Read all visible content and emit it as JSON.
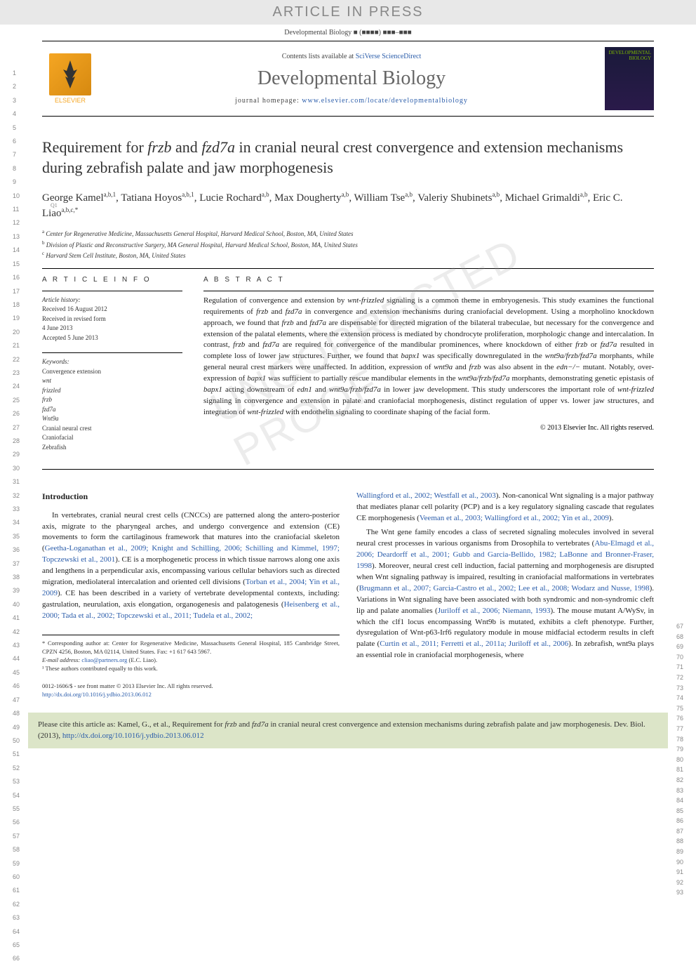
{
  "banner": "ARTICLE IN PRESS",
  "journalRef": "Developmental Biology ■ (■■■■) ■■■–■■■",
  "header": {
    "contentsPrefix": "Contents lists available at ",
    "contentsLink": "SciVerse ScienceDirect",
    "journalName": "Developmental Biology",
    "homepagePrefix": "journal homepage: ",
    "homepageUrl": "www.elsevier.com/locate/developmentalbiology",
    "elsevierLabel": "ELSEVIER",
    "coverLabel": "DEVELOPMENTAL BIOLOGY"
  },
  "title": {
    "prefix": "Requirement for ",
    "gene1": "frzb",
    "mid1": " and ",
    "gene2": "fzd7a",
    "suffix": " in cranial neural crest convergence and extension mechanisms during zebrafish palate and jaw morphogenesis"
  },
  "authors": [
    {
      "name": "George Kamel",
      "sup": "a,b,1"
    },
    {
      "name": "Tatiana Hoyos",
      "sup": "a,b,1"
    },
    {
      "name": "Lucie Rochard",
      "sup": "a,b"
    },
    {
      "name": "Max Dougherty",
      "sup": "a,b"
    },
    {
      "name": "William Tse",
      "sup": "a,b"
    },
    {
      "name": "Valeriy Shubinets",
      "sup": "a,b"
    },
    {
      "name": "Michael Grimaldi",
      "sup": "a,b"
    },
    {
      "name": "Eric C. Liao",
      "sup": "a,b,c,*"
    }
  ],
  "qMarker": "Q1",
  "affiliations": [
    {
      "sup": "a",
      "text": "Center for Regenerative Medicine, Massachusetts General Hospital, Harvard Medical School, Boston, MA, United States"
    },
    {
      "sup": "b",
      "text": "Division of Plastic and Reconstructive Surgery, MA General Hospital, Harvard Medical School, Boston, MA, United States"
    },
    {
      "sup": "c",
      "text": "Harvard Stem Cell Institute, Boston, MA, United States"
    }
  ],
  "articleInfo": {
    "head": "A R T I C L E   I N F O",
    "historyLabel": "Article history:",
    "received": "Received 16 August 2012",
    "revised": "Received in revised form",
    "revisedDate": "4 June 2013",
    "accepted": "Accepted 5 June 2013",
    "keywordsLabel": "Keywords:",
    "keywords": [
      "Convergence extension",
      "wnt",
      "frizzled",
      "frzb",
      "fzd7a",
      "Wnt9a",
      "Cranial neural crest",
      "Craniofacial",
      "Zebrafish"
    ]
  },
  "abstract": {
    "head": "A B S T R A C T",
    "text": "Regulation of convergence and extension by wnt-frizzled signaling is a common theme in embryogenesis. This study examines the functional requirements of frzb and fzd7a in convergence and extension mechanisms during craniofacial development. Using a morpholino knockdown approach, we found that frzb and fzd7a are dispensable for directed migration of the bilateral trabeculae, but necessary for the convergence and extension of the palatal elements, where the extension process is mediated by chondrocyte proliferation, morphologic change and intercalation. In contrast, frzb and fzd7a are required for convergence of the mandibular prominences, where knockdown of either frzb or fzd7a resulted in complete loss of lower jaw structures. Further, we found that bapx1 was specifically downregulated in the wnt9a/frzb/fzd7a morphants, while general neural crest markers were unaffected. In addition, expression of wnt9a and frzb was also absent in the edn−/− mutant. Notably, over-expression of bapx1 was sufficient to partially rescue mandibular elements in the wnt9a/frzb/fzd7a morphants, demonstrating genetic epistasis of bapx1 acting downstream of edn1 and wnt9a/frzb/fzd7a in lower jaw development. This study underscores the important role of wnt-frizzled signaling in convergence and extension in palate and craniofacial morphogenesis, distinct regulation of upper vs. lower jaw structures, and integration of wnt-frizzled with endothelin signaling to coordinate shaping of the facial form.",
    "copyright": "© 2013 Elsevier Inc. All rights reserved."
  },
  "introduction": {
    "head": "Introduction",
    "p1a": "In vertebrates, cranial neural crest cells (CNCCs) are patterned along the antero-posterior axis, migrate to the pharyngeal arches, and undergo convergence and extension (CE) movements to form the cartilaginous framework that matures into the craniofacial skeleton (",
    "p1links": "Geetha-Loganathan et al., 2009; Knight and Schilling, 2006; Schilling and Kimmel, 1997; Topczewski et al., 2001",
    "p1b": "). CE is a morphogenetic process in which tissue narrows along one axis and lengthens in a perpendicular axis, encompassing various cellular behaviors such as directed migration, mediolateral intercalation and oriented cell divisions (",
    "p1links2": "Torban et al., 2004; Yin et al., 2009",
    "p1c": "). CE has been described in a variety of vertebrate developmental contexts, including: gastrulation, neurulation, axis elongation, organogenesis and palatogenesis (",
    "p1links3": "Heisenberg et al., 2000; Tada et al., 2002; Topczewski et al., 2011; Tudela et al., 2002;",
    "col2a": "Wallingford et al., 2002; Westfall et al., 2003",
    "col2b": "). Non-canonical Wnt signaling is a major pathway that mediates planar cell polarity (PCP) and is a key regulatory signaling cascade that regulates CE morphogenesis (",
    "col2links": "Veeman et al., 2003; Wallingford et al., 2002; Yin et al., 2009",
    "col2c": ").",
    "p2a": "The Wnt gene family encodes a class of secreted signaling molecules involved in several neural crest processes in various organisms from Drosophila to vertebrates (",
    "p2links": "Abu-Elmagd et al., 2006; Deardorff et al., 2001; Gubb and Garcia-Bellido, 1982; LaBonne and Bronner-Fraser, 1998",
    "p2b": "). Moreover, neural crest cell induction, facial patterning and morphogenesis are disrupted when Wnt signaling pathway is impaired, resulting in craniofacial malformations in vertebrates (",
    "p2links2": "Brugmann et al., 2007; Garcia-Castro et al., 2002; Lee et al., 2008; Wodarz and Nusse, 1998",
    "p2c": "). Variations in Wnt signaling have been associated with both syndromic and non-syndromic cleft lip and palate anomalies (",
    "p2links3": "Juriloff et al., 2006; Niemann, 1993",
    "p2d": "). The mouse mutant A/WySv, in which the clf1 locus encompassing Wnt9b is mutated, exhibits a cleft phenotype. Further, dysregulation of Wnt-p63-Irf6 regulatory module in mouse midfacial ectoderm results in cleft palate (",
    "p2links4": "Curtin et al., 2011; Ferretti et al., 2011a; Juriloff et al., 2006",
    "p2e": "). In zebrafish, wnt9a plays an essential role in craniofacial morphogenesis, where"
  },
  "footnotes": {
    "corr": "* Corresponding author at: Center for Regenerative Medicine, Massachusetts General Hospital, 185 Cambridge Street, CPZN 4256, Boston, MA 02114, United States. Fax: +1 617 643 5967.",
    "emailLabel": "E-mail address: ",
    "email": "cliao@partners.org",
    "emailSuffix": " (E.C. Liao).",
    "equal": "¹ These authors contributed equally to this work."
  },
  "doi": {
    "line1": "0012-1606/$ - see front matter © 2013 Elsevier Inc. All rights reserved.",
    "line2": "http://dx.doi.org/10.1016/j.ydbio.2013.06.012"
  },
  "citeBox": {
    "prefix": "Please cite this article as: Kamel, G., et al., Requirement for ",
    "gene1": "frzb",
    "mid": " and ",
    "gene2": "fzd7a",
    "suffix": " in cranial neural crest convergence and extension mechanisms during zebrafish palate and jaw morphogenesis. Dev. Biol. (2013), ",
    "link": "http://dx.doi.org/10.1016/j.ydbio.2013.06.012"
  },
  "watermark": "UNCORRECTED PROOF",
  "lineNumbers": {
    "leftStart": 1,
    "leftEnd": 66,
    "rightStart": 67,
    "rightEnd": 93
  },
  "colors": {
    "link": "#2a5caa",
    "bannerBg": "#e8e8e8",
    "citeBg": "#dce5c8",
    "elsevierOrange": "#f5a623"
  }
}
